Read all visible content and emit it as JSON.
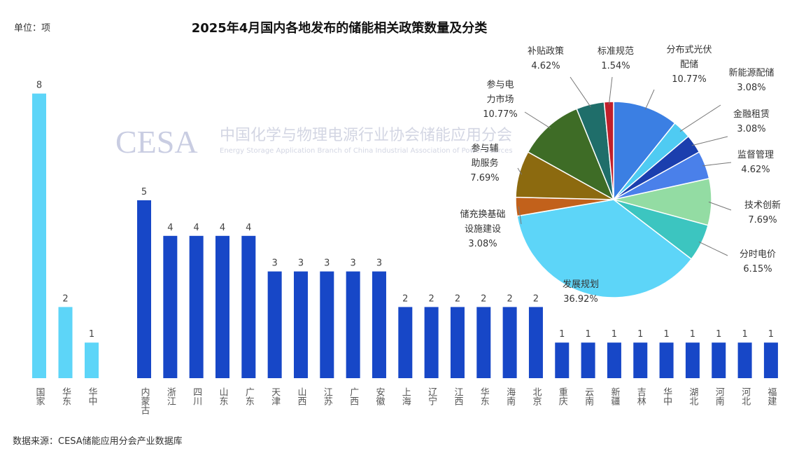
{
  "title": "2025年4月国内各地发布的储能相关政策数量及分类",
  "unit_label": "单位：项",
  "source": "数据来源：CESA储能应用分会产业数据库",
  "watermark": {
    "logo": "CESA",
    "name": "中国化学与物理电源行业协会储能应用分会",
    "english": "Energy Storage Application Branch of China Industrial Association of Power Sources"
  },
  "chart_data": [
    {
      "type": "bar",
      "categories": [
        "国家",
        "华东",
        "华中"
      ],
      "values": [
        8,
        2,
        1
      ],
      "color": "#5dd5f8"
    },
    {
      "type": "bar",
      "categories": [
        "内蒙古",
        "浙江",
        "四川",
        "山东",
        "广东",
        "天津",
        "山西",
        "江苏",
        "广西",
        "安徽",
        "上海",
        "辽宁",
        "江西",
        "华东",
        "海南",
        "北京",
        "重庆",
        "云南",
        "新疆",
        "吉林",
        "华中",
        "湖北",
        "河南",
        "河北",
        "福建"
      ],
      "values": [
        5,
        4,
        4,
        4,
        4,
        3,
        3,
        3,
        3,
        3,
        2,
        2,
        2,
        2,
        2,
        2,
        1,
        1,
        1,
        1,
        1,
        1,
        1,
        1,
        1
      ],
      "color": "#1747c7"
    },
    {
      "type": "pie",
      "categories": [
        "分布式光伏\n配储",
        "新能源配储",
        "金融租赁",
        "监督管理",
        "技术创新",
        "分时电价",
        "发展规划",
        "储充换基础\n设施建设",
        "参与辅\n助服务",
        "参与电\n力市场",
        "补贴政策",
        "标准规范"
      ],
      "values": [
        10.77,
        3.08,
        3.08,
        4.62,
        7.69,
        6.15,
        36.92,
        3.08,
        7.69,
        10.77,
        4.62,
        1.54
      ],
      "value_labels": [
        "10.77%",
        "3.08%",
        "3.08%",
        "4.62%",
        "7.69%",
        "6.15%",
        "36.92%",
        "3.08%",
        "7.69%",
        "10.77%",
        "4.62%",
        "1.54%"
      ],
      "colors": [
        "#3b7fe3",
        "#4fcbf2",
        "#1b3fae",
        "#4a80ea",
        "#93dca3",
        "#3cc5c0",
        "#5dd5f8",
        "#c2611b",
        "#8c6a0f",
        "#3e6c26",
        "#1f6e6a",
        "#c1202b"
      ]
    }
  ]
}
